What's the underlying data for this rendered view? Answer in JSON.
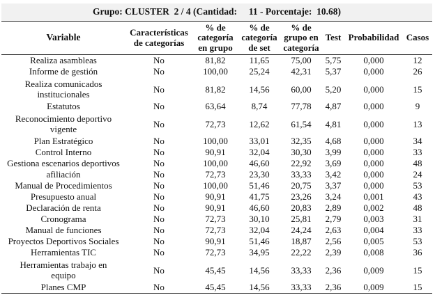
{
  "table": {
    "title": "Grupo: CLUSTER  2 / 4 (Cantidad:     11 - Porcentaje:  10.68)",
    "headers": {
      "variable": "Variable",
      "caracteristicas": [
        "Características",
        "de categorías"
      ],
      "pct_cat_grupo": [
        "% de",
        "categoría",
        "en grupo"
      ],
      "pct_cat_set": [
        "% de",
        "categoría",
        "de set"
      ],
      "pct_grupo_cat": [
        "% de",
        "grupo en",
        "categoría"
      ],
      "test": "Test",
      "probabilidad": "Probabilidad",
      "casos": "Casos"
    },
    "rows": [
      {
        "variable": [
          "Realiza asambleas"
        ],
        "caracteristica": "No",
        "pct_cat_grupo": "81,82",
        "pct_cat_set": "11,65",
        "pct_grupo_cat": "75,00",
        "test": "5,75",
        "probabilidad": "0,000",
        "casos": "12"
      },
      {
        "variable": [
          "Informe de gestión"
        ],
        "caracteristica": "No",
        "pct_cat_grupo": "100,00",
        "pct_cat_set": "25,24",
        "pct_grupo_cat": "42,31",
        "test": "5,37",
        "probabilidad": "0,000",
        "casos": "26"
      },
      {
        "variable": [
          "Realiza comunicados",
          "institucionales"
        ],
        "caracteristica": "No",
        "pct_cat_grupo": "81,82",
        "pct_cat_set": "14,56",
        "pct_grupo_cat": "60,00",
        "test": "5,20",
        "probabilidad": "0,000",
        "casos": "15"
      },
      {
        "variable": [
          "Estatutos"
        ],
        "caracteristica": "No",
        "pct_cat_grupo": "63,64",
        "pct_cat_set": "8,74",
        "pct_grupo_cat": "77,78",
        "test": "4,87",
        "probabilidad": "0,000",
        "casos": "9"
      },
      {
        "variable": [
          "Reconocimiento deportivo",
          "vigente"
        ],
        "caracteristica": "No",
        "pct_cat_grupo": "72,73",
        "pct_cat_set": "12,62",
        "pct_grupo_cat": "61,54",
        "test": "4,81",
        "probabilidad": "0,000",
        "casos": "13"
      },
      {
        "variable": [
          "Plan Estratégico"
        ],
        "caracteristica": "No",
        "pct_cat_grupo": "100,00",
        "pct_cat_set": "33,01",
        "pct_grupo_cat": "32,35",
        "test": "4,68",
        "probabilidad": "0,000",
        "casos": "34"
      },
      {
        "variable": [
          "Control Interno"
        ],
        "caracteristica": "No",
        "pct_cat_grupo": "90,91",
        "pct_cat_set": "32,04",
        "pct_grupo_cat": "30,30",
        "test": "3,99",
        "probabilidad": "0,000",
        "casos": "33"
      },
      {
        "variable": [
          "Gestiona escenarios deportivos"
        ],
        "caracteristica": "No",
        "pct_cat_grupo": "100,00",
        "pct_cat_set": "46,60",
        "pct_grupo_cat": "22,92",
        "test": "3,69",
        "probabilidad": "0,000",
        "casos": "48"
      },
      {
        "variable": [
          "afiliación"
        ],
        "caracteristica": "No",
        "pct_cat_grupo": "72,73",
        "pct_cat_set": "23,30",
        "pct_grupo_cat": "33,33",
        "test": "3,42",
        "probabilidad": "0,000",
        "casos": "24"
      },
      {
        "variable": [
          "Manual de Procedimientos"
        ],
        "caracteristica": "No",
        "pct_cat_grupo": "100,00",
        "pct_cat_set": "51,46",
        "pct_grupo_cat": "20,75",
        "test": "3,37",
        "probabilidad": "0,000",
        "casos": "53"
      },
      {
        "variable": [
          "Presupuesto anual"
        ],
        "caracteristica": "No",
        "pct_cat_grupo": "90,91",
        "pct_cat_set": "41,75",
        "pct_grupo_cat": "23,26",
        "test": "3,24",
        "probabilidad": "0,001",
        "casos": "43"
      },
      {
        "variable": [
          "Declaración de renta"
        ],
        "caracteristica": "No",
        "pct_cat_grupo": "90,91",
        "pct_cat_set": "46,60",
        "pct_grupo_cat": "20,83",
        "test": "2,89",
        "probabilidad": "0,002",
        "casos": "48"
      },
      {
        "variable": [
          "Cronograma"
        ],
        "caracteristica": "No",
        "pct_cat_grupo": "72,73",
        "pct_cat_set": "30,10",
        "pct_grupo_cat": "25,81",
        "test": "2,79",
        "probabilidad": "0,003",
        "casos": "31"
      },
      {
        "variable": [
          "Manual de funciones"
        ],
        "caracteristica": "No",
        "pct_cat_grupo": "72,73",
        "pct_cat_set": "32,04",
        "pct_grupo_cat": "24,24",
        "test": "2,63",
        "probabilidad": "0,004",
        "casos": "33"
      },
      {
        "variable": [
          "Proyectos Deportivos Sociales"
        ],
        "caracteristica": "No",
        "pct_cat_grupo": "90,91",
        "pct_cat_set": "51,46",
        "pct_grupo_cat": "18,87",
        "test": "2,56",
        "probabilidad": "0,005",
        "casos": "53"
      },
      {
        "variable": [
          "Herramientas TIC"
        ],
        "caracteristica": "No",
        "pct_cat_grupo": "72,73",
        "pct_cat_set": "34,95",
        "pct_grupo_cat": "22,22",
        "test": "2,39",
        "probabilidad": "0,008",
        "casos": "36"
      },
      {
        "variable": [
          "Herramientas trabajo en",
          "equipo"
        ],
        "caracteristica": "No",
        "pct_cat_grupo": "45,45",
        "pct_cat_set": "14,56",
        "pct_grupo_cat": "33,33",
        "test": "2,36",
        "probabilidad": "0,009",
        "casos": "15"
      },
      {
        "variable": [
          "Planes CMP"
        ],
        "caracteristica": "No",
        "pct_cat_grupo": "45,45",
        "pct_cat_set": "14,56",
        "pct_grupo_cat": "33,33",
        "test": "2,36",
        "probabilidad": "0,009",
        "casos": "15"
      }
    ]
  }
}
